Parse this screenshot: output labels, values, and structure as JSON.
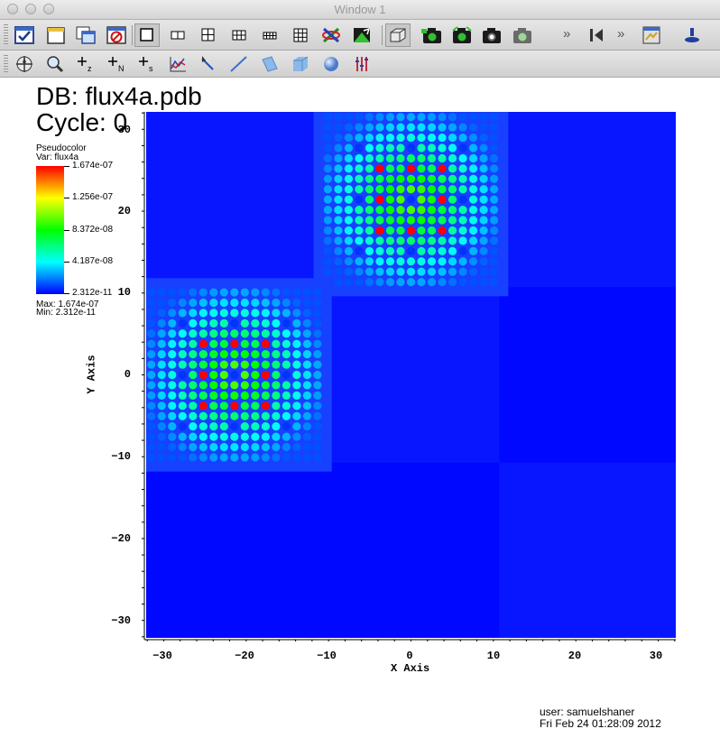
{
  "window": {
    "title": "Window 1"
  },
  "toolbar1": {
    "buttons": [
      "apply-icon",
      "new-window-icon",
      "clone-window-icon",
      "delete-window-icon",
      "layout-1x1-icon",
      "layout-1x2-icon",
      "layout-2x2-icon",
      "layout-2x3-icon",
      "layout-2x4-icon",
      "layout-3x3-icon",
      "spin-icon",
      "lock-view-icon",
      "3d-view-icon",
      "save-image-icon",
      "print-icon",
      "camera-icon",
      "camera-alt-icon",
      "animation-icon",
      "pick-icon"
    ]
  },
  "toolbar2": {
    "buttons": [
      "navigate-icon",
      "zoom-icon",
      "zone-pick-icon",
      "node-pick-icon",
      "spreadsheet-pick-icon",
      "curve-icon",
      "line-tool-icon",
      "lineout-icon",
      "plane-tool-icon",
      "box-tool-icon",
      "sphere-tool-icon",
      "point-tool-icon"
    ]
  },
  "vis": {
    "db_title": "DB: flux4a.pdb",
    "cycle": "Cycle: 0",
    "legend": {
      "title": "Pseudocolor",
      "var": "Var: flux4a",
      "labels": [
        "1.674e-07",
        "1.256e-07",
        "8.372e-08",
        "4.187e-08",
        "2.312e-11"
      ],
      "max": "Max: 1.674e-07",
      "min": "Min: 2.312e-11"
    },
    "x_axis_title": "X Axis",
    "y_axis_title": "Y Axis",
    "x_ticks": [
      "−30",
      "−20",
      "−10",
      "0",
      "10",
      "20",
      "30"
    ],
    "y_ticks": [
      "30",
      "20",
      "10",
      "0",
      "−10",
      "−20",
      "−30"
    ],
    "user": "user: samuelshaner",
    "timestamp": "Fri Feb 24 01:28:09 2012"
  },
  "chart_data": {
    "type": "heatmap",
    "variable": "flux4a",
    "xlim": [
      -32.13,
      32.13
    ],
    "ylim": [
      -32.13,
      32.13
    ],
    "colormap": [
      "#0000ff",
      "#00ffff",
      "#00ff00",
      "#ffff00",
      "#ff0000"
    ],
    "value_range": [
      2.312e-11,
      1.674e-07
    ],
    "assemblies": [
      {
        "center": [
          0,
          21.42
        ],
        "pitch": 1.26,
        "pins": 17
      },
      {
        "center": [
          -21.42,
          0
        ],
        "pitch": 1.26,
        "pins": 17
      }
    ]
  }
}
